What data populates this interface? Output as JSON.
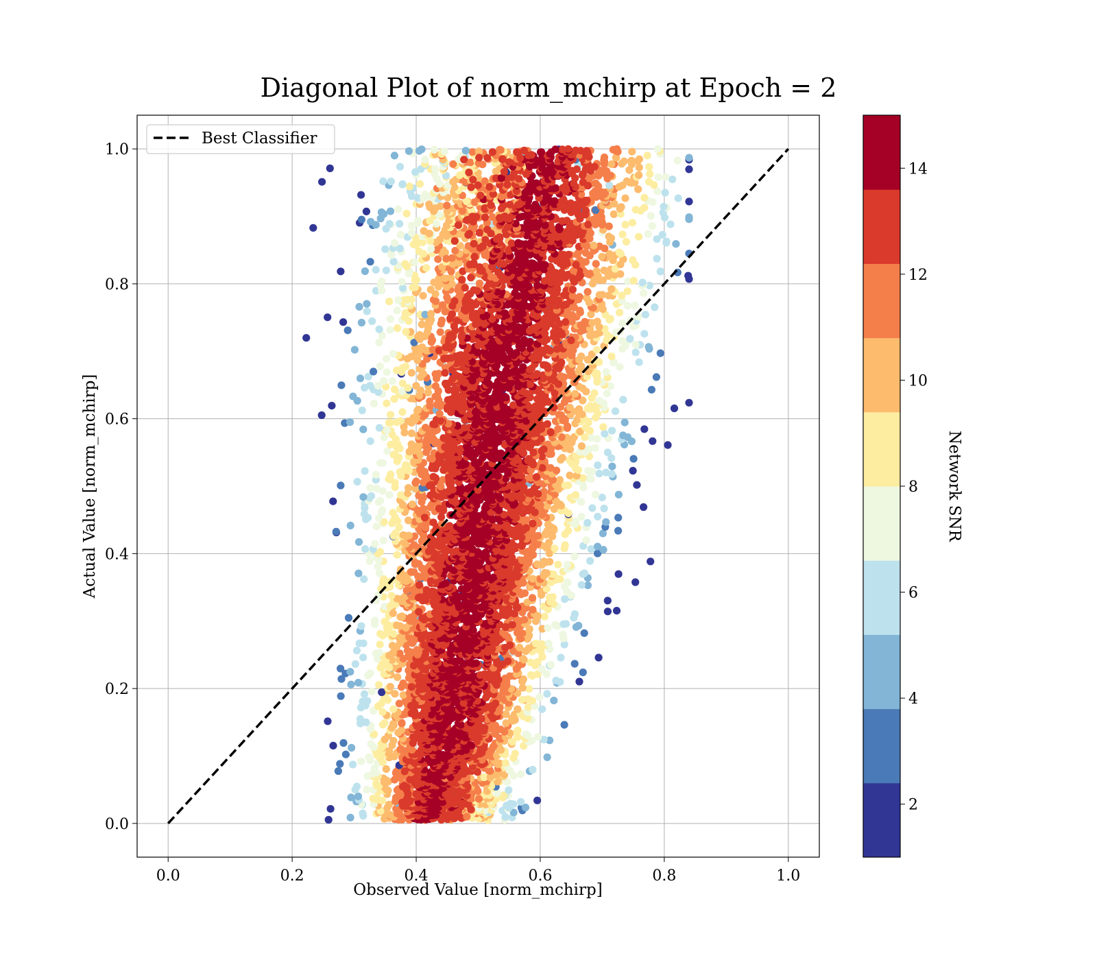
{
  "chart_data": {
    "type": "scatter",
    "title": "Diagonal Plot of norm_mchirp at Epoch = 2",
    "xlabel": "Observed Value [norm_mchirp]",
    "ylabel": "Actual Value [norm_mchirp]",
    "xlim": [
      -0.05,
      1.05
    ],
    "ylim": [
      -0.05,
      1.05
    ],
    "xticks": [
      "0.0",
      "0.2",
      "0.4",
      "0.6",
      "0.8",
      "1.0"
    ],
    "yticks": [
      "0.0",
      "0.2",
      "0.4",
      "0.6",
      "0.8",
      "1.0"
    ],
    "grid": true,
    "legend": {
      "placement": "upper-left",
      "entries": [
        "Best Classifier"
      ]
    },
    "reference_line": {
      "name": "Best Classifier",
      "style": "dashed",
      "color": "#000000",
      "x": [
        0,
        1
      ],
      "y": [
        0,
        1
      ]
    },
    "point_cloud": {
      "description_free": true,
      "x_range_at_y0": [
        0.33,
        0.54
      ],
      "x_range_at_y1": [
        0.38,
        0.79
      ],
      "y_range": [
        0.005,
        1.0
      ]
    },
    "colorbar": {
      "label": "Network SNR",
      "range": [
        1,
        15
      ],
      "ticks": [
        "2",
        "4",
        "6",
        "8",
        "10",
        "12",
        "14"
      ],
      "tick_values": [
        2,
        4,
        6,
        8,
        10,
        12,
        14
      ],
      "levels": [
        1,
        2.4,
        3.8,
        5.2,
        6.6,
        8.0,
        9.4,
        10.8,
        12.2,
        13.6,
        15
      ],
      "colors": [
        "#313695",
        "#4a7ab7",
        "#82b5d6",
        "#bde2ed",
        "#eef7e0",
        "#fdeda1",
        "#fcbb6d",
        "#f57f4b",
        "#d93a2b",
        "#a50026"
      ]
    }
  }
}
